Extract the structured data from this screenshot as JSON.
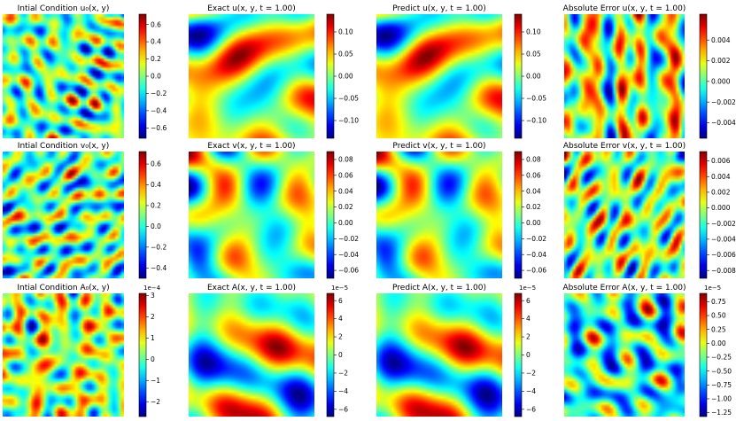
{
  "chart_data": [
    {
      "type": "heatmap",
      "title": "Intial Condition u₀(x, y)",
      "colorbar": {
        "ticks": [
          "0.6",
          "0.4",
          "0.2",
          "0.0",
          "−0.2",
          "−0.4",
          "−0.6"
        ],
        "range": [
          -0.72,
          0.72
        ]
      },
      "colormap": "jet",
      "seed": 11,
      "freq": 5.2
    },
    {
      "type": "heatmap",
      "title": "Exact u(x, y, t = 1.00)",
      "colorbar": {
        "ticks": [
          "0.10",
          "0.05",
          "0.00",
          "−0.05",
          "−0.10"
        ],
        "range": [
          -0.14,
          0.14
        ]
      },
      "colormap": "jet",
      "seed": 21,
      "freq": 1.6
    },
    {
      "type": "heatmap",
      "title": "Predict u(x, y, t = 1.00)",
      "colorbar": {
        "ticks": [
          "0.10",
          "0.05",
          "0.00",
          "−0.05",
          "−0.10"
        ],
        "range": [
          -0.14,
          0.14
        ]
      },
      "colormap": "jet",
      "seed": 21,
      "freq": 1.6
    },
    {
      "type": "heatmap",
      "title": "Absolute Error u(x, y, t = 1.00)",
      "colorbar": {
        "ticks": [
          "0.004",
          "0.002",
          "0.000",
          "−0.002",
          "−0.004"
        ],
        "range": [
          -0.0055,
          0.0065
        ]
      },
      "colormap": "jet",
      "seed": 31,
      "freq": 4.6
    },
    {
      "type": "heatmap",
      "title": "Intial Condition v₀(x, y)",
      "colorbar": {
        "ticks": [
          "0.6",
          "0.4",
          "0.2",
          "0.0",
          "−0.2",
          "−0.4"
        ],
        "range": [
          -0.5,
          0.72
        ]
      },
      "colormap": "jet",
      "seed": 41,
      "freq": 5.5
    },
    {
      "type": "heatmap",
      "title": "Exact v(x, y, t = 1.00)",
      "colorbar": {
        "ticks": [
          "0.08",
          "0.06",
          "0.04",
          "0.02",
          "0.00",
          "−0.02",
          "−0.04",
          "−0.06"
        ],
        "range": [
          -0.07,
          0.09
        ]
      },
      "colormap": "jet",
      "seed": 51,
      "freq": 1.8
    },
    {
      "type": "heatmap",
      "title": "Predict v(x, y, t = 1.00)",
      "colorbar": {
        "ticks": [
          "0.08",
          "0.06",
          "0.04",
          "0.02",
          "0.00",
          "−0.02",
          "−0.04",
          "−0.06"
        ],
        "range": [
          -0.07,
          0.09
        ]
      },
      "colormap": "jet",
      "seed": 51,
      "freq": 1.8
    },
    {
      "type": "heatmap",
      "title": "Absolute Error v(x, y, t = 1.00)",
      "colorbar": {
        "ticks": [
          "0.006",
          "0.004",
          "0.002",
          "0.000",
          "−0.002",
          "−0.004",
          "−0.006",
          "−0.008"
        ],
        "range": [
          -0.009,
          0.0072
        ]
      },
      "colormap": "jet",
      "seed": 61,
      "freq": 4.8
    },
    {
      "type": "heatmap",
      "title": "Intial Condition A₀(x, y)",
      "colorbar": {
        "multiplier": "1e−4",
        "ticks": [
          "3",
          "2",
          "1",
          "0",
          "−1",
          "−2"
        ],
        "range": [
          -2.7,
          3.1
        ]
      },
      "colormap": "jet",
      "seed": 71,
      "freq": 4.2
    },
    {
      "type": "heatmap",
      "title": "Exact A(x, y, t = 1.00)",
      "colorbar": {
        "multiplier": "1e−5",
        "ticks": [
          "6",
          "4",
          "2",
          "0",
          "−2",
          "−4",
          "−6"
        ],
        "range": [
          -6.8,
          6.8
        ]
      },
      "colormap": "jet",
      "seed": 81,
      "freq": 1.8
    },
    {
      "type": "heatmap",
      "title": "Predict A(x, y, t = 1.00)",
      "colorbar": {
        "multiplier": "1e−5",
        "ticks": [
          "6",
          "4",
          "2",
          "0",
          "−2",
          "−4",
          "−6"
        ],
        "range": [
          -6.8,
          6.8
        ]
      },
      "colormap": "jet",
      "seed": 81,
      "freq": 1.8
    },
    {
      "type": "heatmap",
      "title": "Absolute Error A(x, y, t = 1.00)",
      "colorbar": {
        "multiplier": "1e−5",
        "ticks": [
          "0.75",
          "0.50",
          "0.25",
          "0.00",
          "−0.25",
          "−0.50",
          "−0.75",
          "−1.00",
          "−1.25"
        ],
        "range": [
          -1.32,
          0.9
        ]
      },
      "colormap": "jet",
      "seed": 91,
      "freq": 4.0
    }
  ]
}
